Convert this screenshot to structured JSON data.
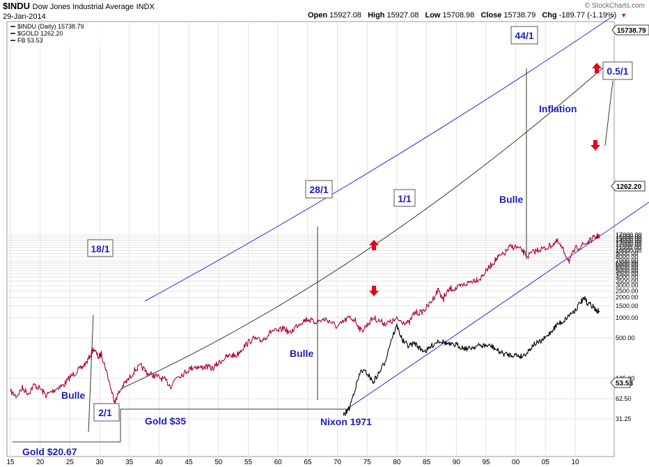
{
  "header": {
    "symbol": "$INDU",
    "name": "Dow Jones Industrial Average",
    "exchange": "INDX",
    "date": "29-Jan-2014",
    "brand": "© StockCharts.com",
    "open_label": "Open",
    "open": "15927.08",
    "high_label": "High",
    "high": "15927.08",
    "low_label": "Low",
    "low": "15708.98",
    "close_label": "Close",
    "close": "15738.79",
    "chg_label": "Chg",
    "chg": "-189.77 (-1.19%)",
    "chg_arrow": "▼"
  },
  "legend": [
    "$INDU (Daily) 15738.79",
    "$GOLD 1262.20",
    "FB 53.53"
  ],
  "colors": {
    "indu": "#b00032",
    "gold": "#000000",
    "channel": "#2a2ae0",
    "trend": "#3a3a20",
    "label_text": "#1d1dbd",
    "arrow": "#e8001a"
  },
  "chart_data": {
    "type": "line",
    "title": "$INDU Dow Jones Industrial Average INDX",
    "scale": "log",
    "xlim": [
      1915,
      2014
    ],
    "x_ticks": [
      {
        "year": 1915,
        "label": "15"
      },
      {
        "year": 1920,
        "label": "20"
      },
      {
        "year": 1925,
        "label": "25"
      },
      {
        "year": 1930,
        "label": "30"
      },
      {
        "year": 1935,
        "label": "35"
      },
      {
        "year": 1940,
        "label": "40"
      },
      {
        "year": 1945,
        "label": "45"
      },
      {
        "year": 1950,
        "label": "50"
      },
      {
        "year": 1955,
        "label": "55"
      },
      {
        "year": 1960,
        "label": "60"
      },
      {
        "year": 1965,
        "label": "65"
      },
      {
        "year": 1970,
        "label": "70"
      },
      {
        "year": 1975,
        "label": "75"
      },
      {
        "year": 1980,
        "label": "80"
      },
      {
        "year": 1985,
        "label": "85"
      },
      {
        "year": 1990,
        "label": "90"
      },
      {
        "year": 1995,
        "label": "95"
      },
      {
        "year": 2000,
        "label": "00"
      },
      {
        "year": 2005,
        "label": "05"
      },
      {
        "year": 2010,
        "label": "10"
      }
    ],
    "y_ticks": [
      {
        "value": 31.25,
        "label": "31.25"
      },
      {
        "value": 62.5,
        "label": "62.50"
      },
      {
        "value": 125,
        "label": "125.00"
      },
      {
        "value": 500,
        "label": "500.00"
      },
      {
        "value": 1000,
        "label": "1000.00"
      },
      {
        "value": 1500,
        "label": "1500.00"
      },
      {
        "value": 2000,
        "label": "2000.00"
      },
      {
        "value": 2500,
        "label": "2500.00"
      },
      {
        "value": 3000,
        "label": "3000.00"
      },
      {
        "value": 3500,
        "label": "3500.00"
      },
      {
        "value": 4000,
        "label": "4000.00"
      },
      {
        "value": 4500,
        "label": "4500.00"
      },
      {
        "value": 5000,
        "label": "5000.00"
      },
      {
        "value": 5500,
        "label": "5500.00"
      },
      {
        "value": 6000,
        "label": "6000.00"
      },
      {
        "value": 6500,
        "label": "6500.00"
      },
      {
        "value": 7000,
        "label": "7000.00"
      },
      {
        "value": 8000,
        "label": "8000.00"
      },
      {
        "value": 9000,
        "label": "9000.00"
      },
      {
        "value": 10000,
        "label": "10000.00"
      },
      {
        "value": 11000,
        "label": "11000.00"
      },
      {
        "value": 12000,
        "label": "12000.00"
      },
      {
        "value": 13000,
        "label": "13000.00"
      },
      {
        "value": 14000,
        "label": "14000.00"
      },
      {
        "value": 15000,
        "label": "15000.00"
      },
      {
        "value": 16000,
        "label": "16000.00"
      },
      {
        "value": 17000,
        "label": "17000.00"
      }
    ],
    "last_value_tags": [
      {
        "series": "$INDU",
        "value": 15738.79,
        "label": "15738.79"
      },
      {
        "series": "$GOLD",
        "value": 1262.2,
        "label": "1262.20"
      },
      {
        "series": "FB",
        "value": 53.53,
        "label": "53.53"
      }
    ],
    "series": [
      {
        "name": "$INDU (Daily)",
        "color": "#b00032",
        "points": [
          [
            1915,
            80
          ],
          [
            1916,
            68
          ],
          [
            1917,
            90
          ],
          [
            1918,
            75
          ],
          [
            1919,
            100
          ],
          [
            1920,
            88
          ],
          [
            1921,
            70
          ],
          [
            1922,
            80
          ],
          [
            1923,
            92
          ],
          [
            1924,
            100
          ],
          [
            1925,
            130
          ],
          [
            1926,
            155
          ],
          [
            1927,
            180
          ],
          [
            1928,
            230
          ],
          [
            1929,
            350
          ],
          [
            1929.8,
            255
          ],
          [
            1930.3,
            290
          ],
          [
            1931,
            180
          ],
          [
            1932,
            82
          ],
          [
            1932.6,
            55
          ],
          [
            1933,
            70
          ],
          [
            1934,
            100
          ],
          [
            1935,
            125
          ],
          [
            1936,
            170
          ],
          [
            1937,
            190
          ],
          [
            1938,
            150
          ],
          [
            1939,
            140
          ],
          [
            1940,
            130
          ],
          [
            1941,
            118
          ],
          [
            1942,
            96
          ],
          [
            1943,
            135
          ],
          [
            1944,
            145
          ],
          [
            1945,
            170
          ],
          [
            1946,
            190
          ],
          [
            1947,
            180
          ],
          [
            1948,
            188
          ],
          [
            1949,
            175
          ],
          [
            1950,
            210
          ],
          [
            1951,
            250
          ],
          [
            1952,
            275
          ],
          [
            1953,
            275
          ],
          [
            1954,
            350
          ],
          [
            1955,
            430
          ],
          [
            1956,
            490
          ],
          [
            1957,
            450
          ],
          [
            1958,
            520
          ],
          [
            1959,
            640
          ],
          [
            1960,
            620
          ],
          [
            1961,
            710
          ],
          [
            1962,
            580
          ],
          [
            1963,
            740
          ],
          [
            1964,
            870
          ],
          [
            1965,
            960
          ],
          [
            1966,
            860
          ],
          [
            1967,
            900
          ],
          [
            1968,
            950
          ],
          [
            1969,
            850
          ],
          [
            1970,
            720
          ],
          [
            1971,
            870
          ],
          [
            1972,
            1000
          ],
          [
            1973,
            920
          ],
          [
            1974,
            630
          ],
          [
            1975,
            780
          ],
          [
            1976,
            1000
          ],
          [
            1977,
            900
          ],
          [
            1978,
            820
          ],
          [
            1979,
            860
          ],
          [
            1980,
            940
          ],
          [
            1981,
            880
          ],
          [
            1982,
            820
          ],
          [
            1983,
            1200
          ],
          [
            1984,
            1180
          ],
          [
            1985,
            1400
          ],
          [
            1986,
            1850
          ],
          [
            1987,
            2650
          ],
          [
            1987.8,
            1800
          ],
          [
            1988,
            2100
          ],
          [
            1989,
            2700
          ],
          [
            1990,
            2700
          ],
          [
            1991,
            3000
          ],
          [
            1992,
            3300
          ],
          [
            1993,
            3650
          ],
          [
            1994,
            3800
          ],
          [
            1995,
            4900
          ],
          [
            1996,
            6300
          ],
          [
            1997,
            7800
          ],
          [
            1998,
            8800
          ],
          [
            1999,
            11200
          ],
          [
            2000,
            11300
          ],
          [
            2001,
            10000
          ],
          [
            2002,
            8200
          ],
          [
            2003,
            9500
          ],
          [
            2004,
            10400
          ],
          [
            2005,
            10700
          ],
          [
            2006,
            12000
          ],
          [
            2007,
            13500
          ],
          [
            2008,
            10000
          ],
          [
            2009,
            7000
          ],
          [
            2010,
            10500
          ],
          [
            2011,
            11800
          ],
          [
            2012,
            13000
          ],
          [
            2013,
            15000
          ],
          [
            2013.8,
            16400
          ],
          [
            2014.08,
            15738.79
          ]
        ]
      },
      {
        "name": "$GOLD",
        "color": "#000000",
        "points": [
          [
            1971,
            35
          ],
          [
            1972,
            45
          ],
          [
            1973,
            90
          ],
          [
            1974,
            165
          ],
          [
            1975,
            150
          ],
          [
            1976,
            110
          ],
          [
            1977,
            150
          ],
          [
            1978,
            220
          ],
          [
            1979,
            460
          ],
          [
            1980,
            760
          ],
          [
            1981,
            450
          ],
          [
            1982,
            380
          ],
          [
            1983,
            420
          ],
          [
            1984,
            340
          ],
          [
            1985,
            320
          ],
          [
            1986,
            390
          ],
          [
            1987,
            460
          ],
          [
            1988,
            430
          ],
          [
            1989,
            390
          ],
          [
            1990,
            395
          ],
          [
            1991,
            360
          ],
          [
            1992,
            345
          ],
          [
            1993,
            370
          ],
          [
            1994,
            385
          ],
          [
            1995,
            385
          ],
          [
            1996,
            375
          ],
          [
            1997,
            320
          ],
          [
            1998,
            290
          ],
          [
            1999,
            280
          ],
          [
            2000,
            280
          ],
          [
            2001,
            265
          ],
          [
            2002,
            310
          ],
          [
            2003,
            400
          ],
          [
            2004,
            430
          ],
          [
            2005,
            500
          ],
          [
            2006,
            630
          ],
          [
            2007,
            800
          ],
          [
            2008,
            880
          ],
          [
            2009,
            1100
          ],
          [
            2010,
            1300
          ],
          [
            2011,
            1750
          ],
          [
            2011.7,
            1900
          ],
          [
            2012,
            1650
          ],
          [
            2013,
            1500
          ],
          [
            2013.5,
            1250
          ],
          [
            2014.08,
            1262.2
          ]
        ]
      }
    ],
    "annotations": [
      {
        "text": "18/1",
        "boxed": true
      },
      {
        "text": "28/1",
        "boxed": true
      },
      {
        "text": "1/1",
        "boxed": true
      },
      {
        "text": "44/1",
        "boxed": true
      },
      {
        "text": "0.5/1",
        "boxed": true
      },
      {
        "text": "2/1",
        "boxed": true
      },
      {
        "text": "Bulle",
        "boxed": false
      },
      {
        "text": "Bulle",
        "boxed": false
      },
      {
        "text": "Bulle",
        "boxed": false
      },
      {
        "text": "Inflation",
        "boxed": false
      },
      {
        "text": "Gold $35",
        "boxed": false
      },
      {
        "text": "Nixon 1971",
        "boxed": false
      },
      {
        "text": "Gold $20.67",
        "boxed": false
      }
    ]
  }
}
